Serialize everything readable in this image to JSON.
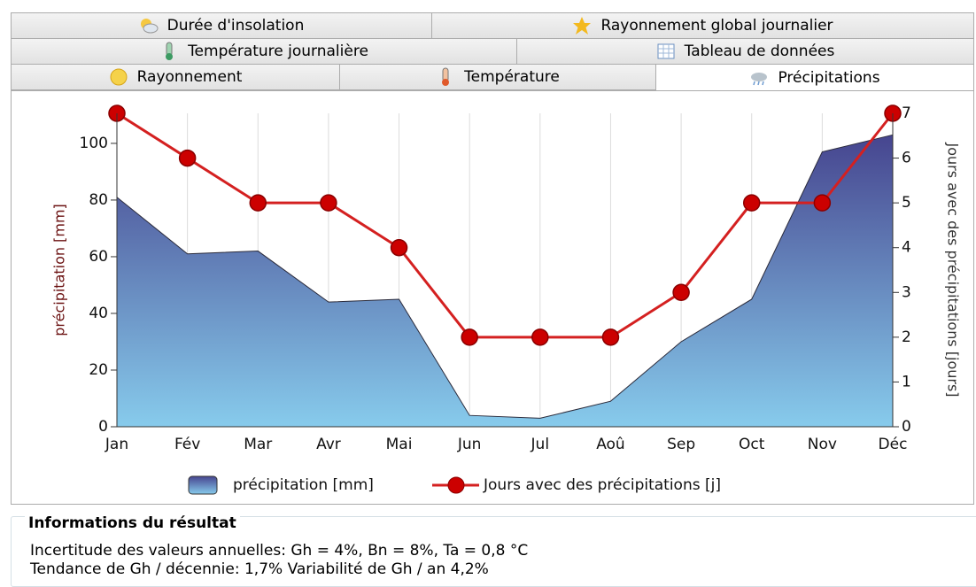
{
  "tabs": [
    {
      "label": "Durée d'insolation"
    },
    {
      "label": "Rayonnement global journalier"
    },
    {
      "label": "Température journalière"
    },
    {
      "label": "Tableau de données"
    },
    {
      "label": "Rayonnement"
    },
    {
      "label": "Température"
    },
    {
      "label": "Précipitations"
    }
  ],
  "chart_data": {
    "type": "combo",
    "categories": [
      "Jan",
      "Fév",
      "Mar",
      "Avr",
      "Mai",
      "Jun",
      "Jul",
      "Aoû",
      "Sep",
      "Oct",
      "Nov",
      "Déc"
    ],
    "series": [
      {
        "name": "précipitation [mm]",
        "color": "#46458f",
        "values": [
          81,
          61,
          62,
          44,
          45,
          4,
          3,
          9,
          30,
          45,
          97,
          103
        ]
      },
      {
        "name": "Jours avec des précipitations [j]",
        "color": "#d42020",
        "axis": "y2",
        "values": [
          7,
          6,
          5,
          5,
          4,
          2,
          2,
          2,
          3,
          5,
          5,
          7
        ]
      }
    ],
    "ylabel": "précipitation [mm]",
    "y2label": "Jours avec des précipitations [jours]",
    "ylim": [
      0,
      110.6
    ],
    "yticks": [
      0,
      20,
      40,
      60,
      80,
      100
    ],
    "y2lim": [
      0,
      7
    ],
    "y2ticks": [
      0,
      1,
      2,
      3,
      4,
      5,
      6,
      7
    ],
    "grid": true
  },
  "info": {
    "title": "Informations du résultat",
    "lines": [
      "Incertitude des valeurs annuelles: Gh = 4%, Bn = 8%, Ta = 0,8 °C",
      "Tendance de Gh / décennie: 1,7%   Variabilité de Gh / an 4,2%"
    ]
  }
}
